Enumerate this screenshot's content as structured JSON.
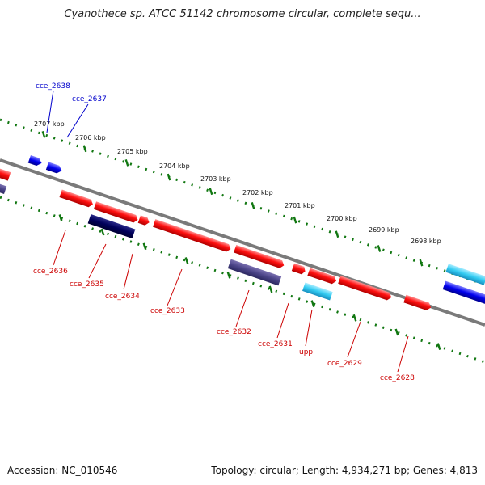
{
  "title": "Cyanothece sp. ATCC 51142 chromosome circular, complete sequ...",
  "footer": {
    "accession": "Accession: NC_010546",
    "summary": "Topology: circular; Length: 4,934,271 bp; Genes: 4,813"
  },
  "colors": {
    "forward_gene": "#ff0000",
    "forward_gene_label": "#0000cc",
    "reverse_gene_label": "#cc0000",
    "backbone": "#808080",
    "tick": "#117711",
    "dark_navy": "#000066",
    "purple_gray": "#4b4488",
    "light_cyan": "#33ccf2",
    "blue": "#0000ee"
  },
  "kbp_ticks": [
    "2707 kbp",
    "2706 kbp",
    "2705 kbp",
    "2704 kbp",
    "2703 kbp",
    "2702 kbp",
    "2701 kbp",
    "2700 kbp",
    "2699 kbp",
    "2698 kbp"
  ],
  "gene_labels_top": [
    "cce_2638",
    "cce_2637"
  ],
  "gene_labels_bottom": [
    "cce_2636",
    "cce_2635",
    "cce_2634",
    "cce_2633",
    "cce_2632",
    "cce_2631",
    "upp",
    "cce_2629",
    "cce_2628"
  ]
}
